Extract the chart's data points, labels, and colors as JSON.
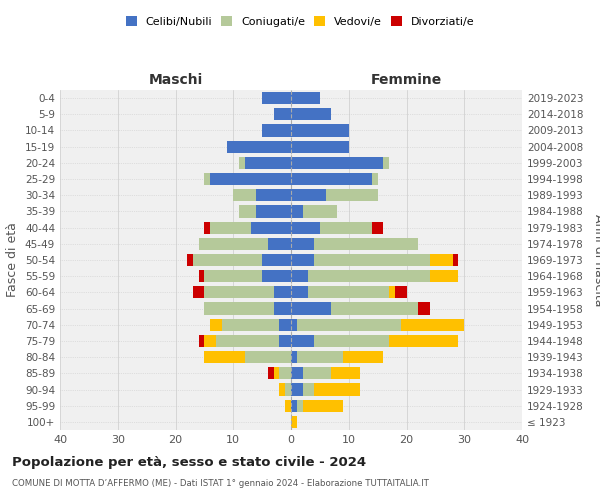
{
  "age_groups": [
    "100+",
    "95-99",
    "90-94",
    "85-89",
    "80-84",
    "75-79",
    "70-74",
    "65-69",
    "60-64",
    "55-59",
    "50-54",
    "45-49",
    "40-44",
    "35-39",
    "30-34",
    "25-29",
    "20-24",
    "15-19",
    "10-14",
    "5-9",
    "0-4"
  ],
  "birth_years": [
    "≤ 1923",
    "1924-1928",
    "1929-1933",
    "1934-1938",
    "1939-1943",
    "1944-1948",
    "1949-1953",
    "1954-1958",
    "1959-1963",
    "1964-1968",
    "1969-1973",
    "1974-1978",
    "1979-1983",
    "1984-1988",
    "1989-1993",
    "1994-1998",
    "1999-2003",
    "2004-2008",
    "2009-2013",
    "2014-2018",
    "2019-2023"
  ],
  "colors": {
    "celibi": "#4472c4",
    "coniugati": "#b5c99a",
    "vedovi": "#ffc000",
    "divorziati": "#cc0000"
  },
  "maschi": {
    "celibi": [
      0,
      0,
      0,
      0,
      0,
      2,
      2,
      3,
      3,
      5,
      5,
      4,
      7,
      6,
      6,
      14,
      8,
      11,
      5,
      3,
      5
    ],
    "coniugati": [
      0,
      0,
      1,
      2,
      8,
      11,
      10,
      12,
      12,
      10,
      12,
      12,
      7,
      3,
      4,
      1,
      1,
      0,
      0,
      0,
      0
    ],
    "vedovi": [
      0,
      1,
      1,
      1,
      7,
      2,
      2,
      0,
      0,
      0,
      0,
      0,
      0,
      0,
      0,
      0,
      0,
      0,
      0,
      0,
      0
    ],
    "divorziati": [
      0,
      0,
      0,
      1,
      0,
      1,
      0,
      0,
      2,
      1,
      1,
      0,
      1,
      0,
      0,
      0,
      0,
      0,
      0,
      0,
      0
    ]
  },
  "femmine": {
    "celibi": [
      0,
      1,
      2,
      2,
      1,
      4,
      1,
      7,
      3,
      3,
      4,
      4,
      5,
      2,
      6,
      14,
      16,
      10,
      10,
      7,
      5
    ],
    "coniugati": [
      0,
      1,
      2,
      5,
      8,
      13,
      18,
      15,
      14,
      21,
      20,
      18,
      9,
      6,
      9,
      1,
      1,
      0,
      0,
      0,
      0
    ],
    "vedovi": [
      1,
      7,
      8,
      5,
      7,
      12,
      11,
      0,
      1,
      5,
      4,
      0,
      0,
      0,
      0,
      0,
      0,
      0,
      0,
      0,
      0
    ],
    "divorziati": [
      0,
      0,
      0,
      0,
      0,
      0,
      0,
      2,
      2,
      0,
      1,
      0,
      2,
      0,
      0,
      0,
      0,
      0,
      0,
      0,
      0
    ]
  },
  "title": "Popolazione per età, sesso e stato civile - 2024",
  "subtitle": "COMUNE DI MOTTA D’AFFERMO (ME) - Dati ISTAT 1° gennaio 2024 - Elaborazione TUTTAITALIA.IT",
  "xlabel_left": "Maschi",
  "xlabel_right": "Femmine",
  "ylabel_left": "Fasce di età",
  "ylabel_right": "Anni di nascita",
  "xlim": 40,
  "legend_labels": [
    "Celibi/Nubili",
    "Coniugati/e",
    "Vedovi/e",
    "Divorziati/e"
  ],
  "background_color": "#ffffff",
  "bg_axes": "#f0f0f0"
}
